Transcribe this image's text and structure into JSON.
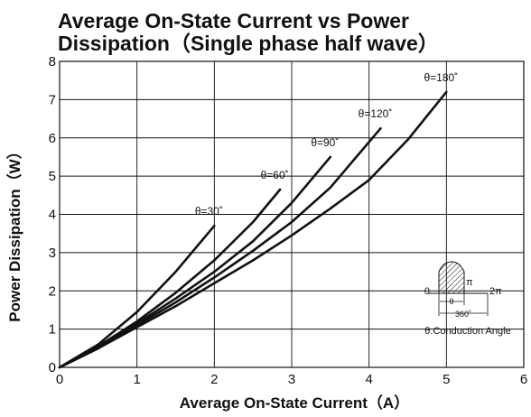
{
  "chart_data": {
    "type": "line",
    "title_lines": [
      "Average On-State Current vs Power",
      "Dissipation（Single phase half wave）"
    ],
    "xlabel": "Average On-State Current（A）",
    "ylabel": "Power Dissipation（W）",
    "xlim": [
      0,
      6
    ],
    "ylim": [
      0,
      8
    ],
    "xticks": [
      "0",
      "1",
      "2",
      "3",
      "4",
      "5",
      "6"
    ],
    "yticks": [
      "0",
      "1",
      "2",
      "3",
      "4",
      "5",
      "6",
      "7",
      "8"
    ],
    "grid": true,
    "series": [
      {
        "name": "θ=30˚",
        "x": [
          0,
          0.5,
          1.0,
          1.5,
          2.0
        ],
        "y": [
          0,
          0.6,
          1.45,
          2.5,
          3.7
        ]
      },
      {
        "name": "θ=60˚",
        "x": [
          0,
          0.5,
          1.0,
          1.5,
          2.0,
          2.5,
          2.85
        ],
        "y": [
          0,
          0.55,
          1.2,
          1.95,
          2.8,
          3.8,
          4.65
        ]
      },
      {
        "name": "θ=90˚",
        "x": [
          0,
          0.5,
          1.0,
          1.5,
          2.0,
          2.5,
          3.0,
          3.5
        ],
        "y": [
          0,
          0.5,
          1.15,
          1.8,
          2.5,
          3.3,
          4.3,
          5.5
        ]
      },
      {
        "name": "θ=120˚",
        "x": [
          0,
          0.5,
          1.0,
          1.5,
          2.0,
          2.5,
          3.0,
          3.5,
          4.15
        ],
        "y": [
          0,
          0.5,
          1.1,
          1.7,
          2.35,
          3.05,
          3.8,
          4.7,
          6.25
        ]
      },
      {
        "name": "θ=180˚",
        "x": [
          0,
          0.5,
          1.0,
          1.5,
          2.0,
          2.5,
          3.0,
          3.5,
          4.0,
          4.5,
          5.0
        ],
        "y": [
          0,
          0.5,
          1.05,
          1.6,
          2.2,
          2.8,
          3.45,
          4.15,
          4.9,
          5.95,
          7.2
        ]
      }
    ],
    "inset": {
      "zero_label": "0",
      "pi_label": "π",
      "two_pi_label": "2π",
      "theta_label": "θ",
      "period_label": "360˚",
      "caption": "θ:Conduction Angle"
    }
  }
}
